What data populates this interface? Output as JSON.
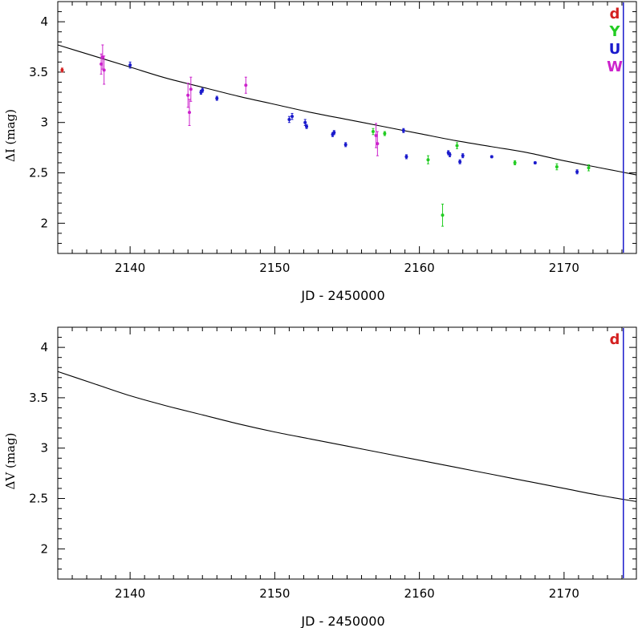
{
  "chart_data": [
    {
      "type": "scatter",
      "title": "",
      "xlabel": "JD - 2450000",
      "ylabel": "ΔI (mag)",
      "xlim": [
        2135,
        2175
      ],
      "ylim": [
        1.7,
        4.2
      ],
      "y_inverted": false,
      "grid": false,
      "xticks": [
        2140,
        2150,
        2160,
        2170
      ],
      "yticks": [
        2,
        2.5,
        3,
        3.5,
        4
      ],
      "legend_placement": "top-right",
      "colors": {
        "d": "#d42020",
        "Y": "#22cc22",
        "U": "#1a1acc",
        "W": "#cc22cc",
        "vline": "#1a1acc",
        "curve": "#000000"
      },
      "legend": [
        "d",
        "Y",
        "U",
        "W"
      ],
      "vline_x": 2174.1,
      "curve": {
        "x": [
          2135,
          2137.5,
          2140,
          2142.5,
          2145,
          2147.5,
          2150,
          2152.5,
          2155,
          2157.5,
          2160,
          2162.5,
          2165,
          2167.5,
          2170,
          2172.5,
          2175
        ],
        "y": [
          3.77,
          3.66,
          3.55,
          3.44,
          3.35,
          3.26,
          3.18,
          3.1,
          3.03,
          2.96,
          2.89,
          2.82,
          2.76,
          2.7,
          2.62,
          2.55,
          2.48
        ]
      },
      "series": [
        {
          "name": "d",
          "points": [
            {
              "x": 2135.3,
              "y": 3.52,
              "err": 0.02
            }
          ]
        },
        {
          "name": "Y",
          "points": [
            {
              "x": 2156.8,
              "y": 2.91,
              "err": 0.03
            },
            {
              "x": 2157.6,
              "y": 2.89,
              "err": 0.02
            },
            {
              "x": 2160.6,
              "y": 2.63,
              "err": 0.04
            },
            {
              "x": 2161.6,
              "y": 2.08,
              "err": 0.11
            },
            {
              "x": 2162.6,
              "y": 2.77,
              "err": 0.03
            },
            {
              "x": 2166.6,
              "y": 2.6,
              "err": 0.02
            },
            {
              "x": 2169.5,
              "y": 2.56,
              "err": 0.03
            },
            {
              "x": 2171.7,
              "y": 2.55,
              "err": 0.03
            }
          ]
        },
        {
          "name": "U",
          "points": [
            {
              "x": 2140.0,
              "y": 3.57,
              "err": 0.03
            },
            {
              "x": 2144.9,
              "y": 3.3,
              "err": 0.02
            },
            {
              "x": 2145.0,
              "y": 3.32,
              "err": 0.02
            },
            {
              "x": 2146.0,
              "y": 3.24,
              "err": 0.02
            },
            {
              "x": 2151.0,
              "y": 3.03,
              "err": 0.03
            },
            {
              "x": 2151.2,
              "y": 3.06,
              "err": 0.03
            },
            {
              "x": 2152.1,
              "y": 3.0,
              "err": 0.03
            },
            {
              "x": 2152.2,
              "y": 2.96,
              "err": 0.02
            },
            {
              "x": 2154.0,
              "y": 2.88,
              "err": 0.02
            },
            {
              "x": 2154.1,
              "y": 2.9,
              "err": 0.02
            },
            {
              "x": 2154.9,
              "y": 2.78,
              "err": 0.02
            },
            {
              "x": 2158.9,
              "y": 2.92,
              "err": 0.02
            },
            {
              "x": 2159.1,
              "y": 2.66,
              "err": 0.02
            },
            {
              "x": 2162.0,
              "y": 2.7,
              "err": 0.02
            },
            {
              "x": 2162.1,
              "y": 2.68,
              "err": 0.02
            },
            {
              "x": 2162.8,
              "y": 2.61,
              "err": 0.02
            },
            {
              "x": 2163.0,
              "y": 2.67,
              "err": 0.02
            },
            {
              "x": 2165.0,
              "y": 2.66,
              "err": 0.01
            },
            {
              "x": 2168.0,
              "y": 2.6,
              "err": 0.01
            },
            {
              "x": 2170.9,
              "y": 2.51,
              "err": 0.02
            }
          ]
        },
        {
          "name": "W",
          "points": [
            {
              "x": 2138.0,
              "y": 3.58,
              "err": 0.1
            },
            {
              "x": 2138.1,
              "y": 3.65,
              "err": 0.12
            },
            {
              "x": 2138.2,
              "y": 3.52,
              "err": 0.14
            },
            {
              "x": 2144.0,
              "y": 3.27,
              "err": 0.12
            },
            {
              "x": 2144.1,
              "y": 3.1,
              "err": 0.13
            },
            {
              "x": 2144.2,
              "y": 3.33,
              "err": 0.12
            },
            {
              "x": 2148.0,
              "y": 3.37,
              "err": 0.08
            },
            {
              "x": 2157.0,
              "y": 2.87,
              "err": 0.12
            },
            {
              "x": 2157.1,
              "y": 2.79,
              "err": 0.12
            }
          ]
        }
      ]
    },
    {
      "type": "line",
      "title": "",
      "xlabel": "JD - 2450000",
      "ylabel": "ΔV (mag)",
      "xlim": [
        2135,
        2175
      ],
      "ylim": [
        1.7,
        4.2
      ],
      "grid": false,
      "xticks": [
        2140,
        2150,
        2160,
        2170
      ],
      "yticks": [
        2,
        2.5,
        3,
        3.5,
        4
      ],
      "legend_placement": "top-right",
      "colors": {
        "d": "#d42020",
        "vline": "#1a1acc",
        "curve": "#000000"
      },
      "legend": [
        "d"
      ],
      "vline_x": 2174.1,
      "curve": {
        "x": [
          2135,
          2137.5,
          2140,
          2142.5,
          2145,
          2147.5,
          2150,
          2152.5,
          2155,
          2157.5,
          2160,
          2162.5,
          2165,
          2167.5,
          2170,
          2172.5,
          2175
        ],
        "y": [
          3.76,
          3.64,
          3.52,
          3.42,
          3.33,
          3.24,
          3.16,
          3.09,
          3.02,
          2.95,
          2.88,
          2.81,
          2.74,
          2.67,
          2.6,
          2.53,
          2.47
        ]
      },
      "series": []
    }
  ]
}
